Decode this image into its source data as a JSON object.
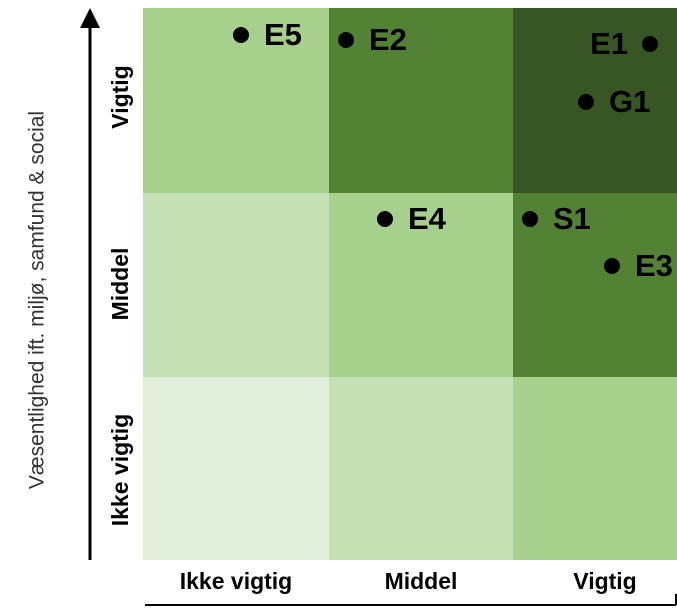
{
  "y_axis_label": "Væsentlighed ift. miljø, samfund & social",
  "row_labels": [
    "Vigtig",
    "Middel",
    "Ikke vigtig"
  ],
  "column_labels": [
    "Ikke vigtig",
    "Middel",
    "Vigtig"
  ],
  "points": [
    {
      "label": "E5"
    },
    {
      "label": "E2"
    },
    {
      "label": "E1"
    },
    {
      "label": "G1"
    },
    {
      "label": "E4"
    },
    {
      "label": "S1"
    },
    {
      "label": "E3"
    }
  ]
}
